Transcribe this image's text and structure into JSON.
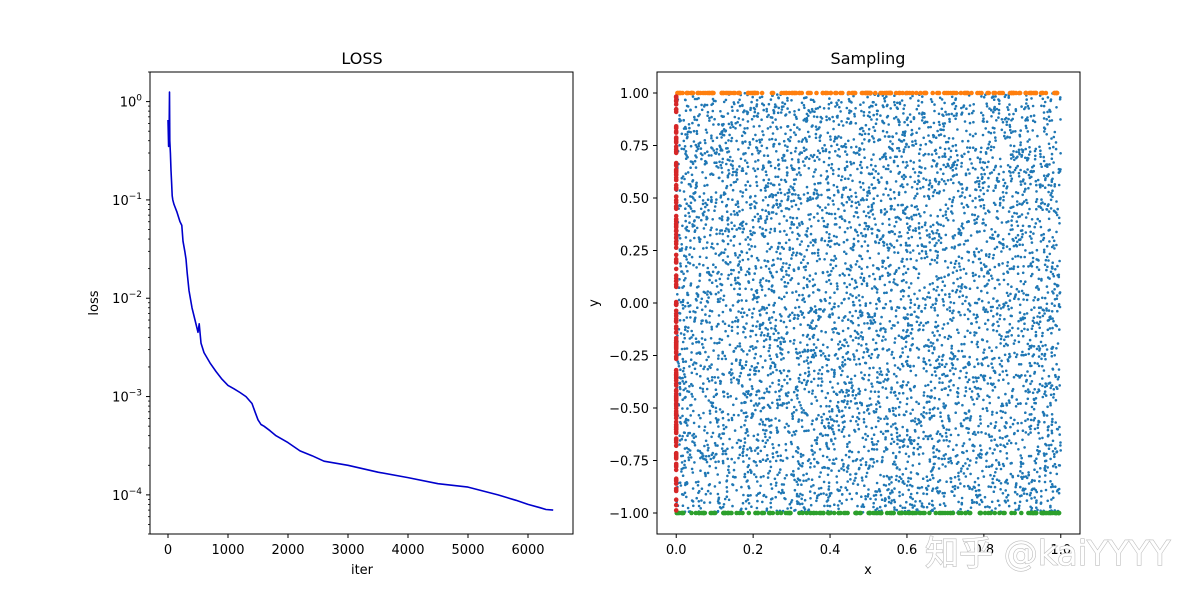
{
  "watermark": "知乎 @kaiYYYY",
  "chart_data": [
    {
      "type": "line",
      "title": "LOSS",
      "xlabel": "iter",
      "ylabel": "loss",
      "yscale": "log",
      "xlim": [
        -300,
        6750
      ],
      "ylim": [
        4e-05,
        2.0
      ],
      "xticks": [
        0,
        1000,
        2000,
        3000,
        4000,
        5000,
        6000
      ],
      "xtick_labels": [
        "0",
        "1000",
        "2000",
        "3000",
        "4000",
        "5000",
        "6000"
      ],
      "yticks": [
        1,
        0.1,
        0.01,
        0.001,
        0.0001
      ],
      "ytick_labels": [
        {
          "base": "10",
          "exp": "0"
        },
        {
          "base": "10",
          "exp": "−1"
        },
        {
          "base": "10",
          "exp": "−2"
        },
        {
          "base": "10",
          "exp": "−3"
        },
        {
          "base": "10",
          "exp": "−4"
        }
      ],
      "series": [
        {
          "color": "#0000cc",
          "x": [
            0,
            10,
            20,
            25,
            30,
            40,
            50,
            60,
            70,
            80,
            100,
            150,
            200,
            230,
            250,
            280,
            300,
            320,
            350,
            400,
            450,
            500,
            520,
            550,
            600,
            700,
            800,
            900,
            1000,
            1100,
            1200,
            1300,
            1400,
            1450,
            1500,
            1550,
            1600,
            1700,
            1800,
            2000,
            2200,
            2400,
            2600,
            3000,
            3500,
            4000,
            4500,
            5000,
            5500,
            5800,
            6000,
            6200,
            6300,
            6420
          ],
          "y": [
            0.65,
            0.35,
            0.6,
            1.25,
            0.4,
            0.3,
            0.2,
            0.15,
            0.11,
            0.1,
            0.09,
            0.075,
            0.06,
            0.055,
            0.038,
            0.03,
            0.025,
            0.018,
            0.012,
            0.008,
            0.006,
            0.0045,
            0.0055,
            0.0035,
            0.0028,
            0.0022,
            0.0018,
            0.0015,
            0.0013,
            0.0012,
            0.0011,
            0.001,
            0.00085,
            0.0007,
            0.00058,
            0.00052,
            0.0005,
            0.00045,
            0.0004,
            0.00034,
            0.00028,
            0.00025,
            0.00022,
            0.0002,
            0.00017,
            0.00015,
            0.00013,
            0.00012,
            0.0001,
            8.8e-05,
            8e-05,
            7.4e-05,
            7.1e-05,
            7e-05
          ]
        }
      ],
      "grid": false
    },
    {
      "type": "scatter",
      "title": "Sampling",
      "xlabel": "x",
      "ylabel": "y",
      "xlim": [
        -0.05,
        1.05
      ],
      "ylim": [
        -1.1,
        1.1
      ],
      "xticks": [
        0,
        0.2,
        0.4,
        0.6,
        0.8,
        1.0
      ],
      "xtick_labels": [
        "0.0",
        "0.2",
        "0.4",
        "0.6",
        "0.8",
        "1.0"
      ],
      "yticks": [
        -1.0,
        -0.75,
        -0.5,
        -0.25,
        0.0,
        0.25,
        0.5,
        0.75,
        1.0
      ],
      "ytick_labels": [
        "−1.00",
        "−0.75",
        "−0.50",
        "−0.25",
        "0.00",
        "0.25",
        "0.50",
        "0.75",
        "1.00"
      ],
      "grid": false,
      "series": [
        {
          "color": "#1f77b4",
          "count": 6000,
          "x_range": [
            0,
            1
          ],
          "y_range": [
            -1,
            1
          ],
          "marker_size": 1.3
        },
        {
          "color": "#ff7f0e",
          "count": 180,
          "x_range": [
            0,
            1
          ],
          "y_value": 1.0,
          "marker_size": 2.3
        },
        {
          "color": "#2ca02c",
          "count": 180,
          "x_range": [
            0,
            1
          ],
          "y_value": -1.0,
          "marker_size": 2.3
        },
        {
          "color": "#d62728",
          "count": 180,
          "x_value": 0.0,
          "y_range": [
            -1,
            1
          ],
          "marker_size": 2.3
        }
      ]
    }
  ]
}
